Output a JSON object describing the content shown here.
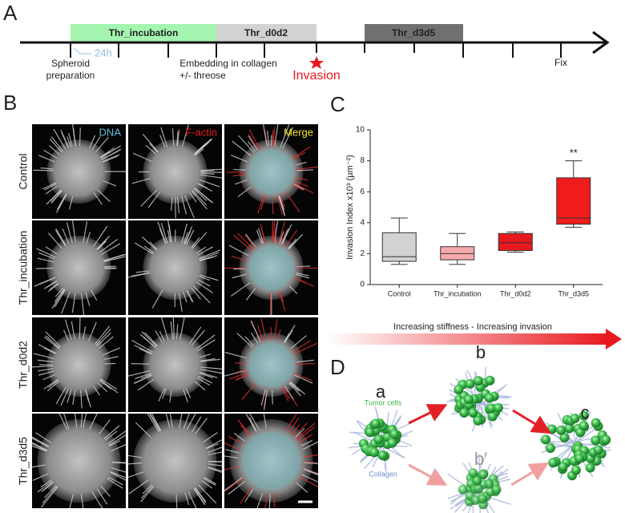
{
  "panel_labels": {
    "a": "A",
    "b": "B",
    "c": "C",
    "d": "D"
  },
  "timeline": {
    "phases": [
      "Thr_incubation",
      "Thr_d0d2",
      "Thr_d3d5"
    ],
    "spheroid": [
      "Spheroid",
      "preparation"
    ],
    "interval": "24h",
    "embedding": [
      "Embedding in collagen",
      "+/- threose"
    ],
    "invasion": "Invasion",
    "fix": "Fix"
  },
  "images": {
    "columns": [
      "DNA",
      "F-actin",
      "Merge"
    ],
    "rows": [
      "Control",
      "Thr_incubation",
      "Thr_d0d2",
      "Thr_d3d5"
    ]
  },
  "chart_data": {
    "type": "box",
    "y_label": "Invasion Index x10³ (µm⁻²)",
    "categories": [
      "Control",
      "Thr_incubation",
      "Thr_d0d2",
      "Thr_d3d5"
    ],
    "boxes": [
      {
        "min": 1.3,
        "q1": 1.5,
        "median": 1.8,
        "q3": 3.35,
        "max": 4.3,
        "color": "#d2d2d2"
      },
      {
        "min": 1.3,
        "q1": 1.6,
        "median": 2.0,
        "q3": 2.45,
        "max": 3.3,
        "color": "#f6a9ab"
      },
      {
        "min": 2.1,
        "q1": 2.2,
        "median": 2.7,
        "q3": 3.3,
        "max": 3.4,
        "color": "#e8191e"
      },
      {
        "min": 3.7,
        "q1": 3.9,
        "median": 4.3,
        "q3": 6.9,
        "max": 8.0,
        "color": "#ee1c1c"
      }
    ],
    "ylim": [
      0,
      10
    ],
    "yticks": [
      0,
      2,
      4,
      6,
      8,
      10
    ],
    "annotations": [
      {
        "label": "**",
        "x": "Thr_d3d5"
      }
    ]
  },
  "model": {
    "gradient_label": "Increasing stiffness - Increasing invasion",
    "stages": [
      "a",
      "b",
      "b′",
      "c"
    ],
    "tumor_cells": "Tumor cells",
    "collagen": "Collagen"
  }
}
